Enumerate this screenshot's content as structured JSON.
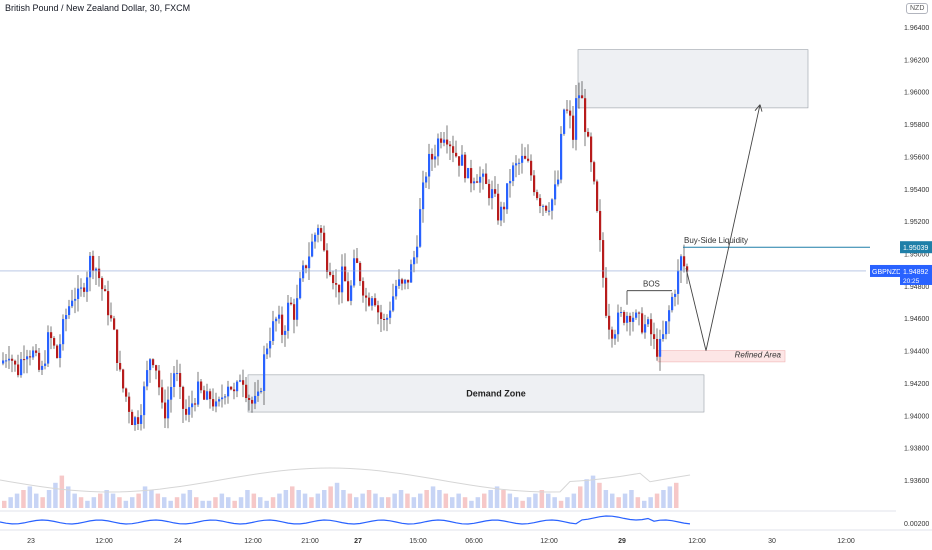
{
  "header": {
    "title": "British Pound / New Zealand Dollar, 30, FXCM",
    "currency": "NZD"
  },
  "chart_data": {
    "type": "candlestick",
    "title": "British Pound / New Zealand Dollar, 30, FXCM",
    "price_axis": {
      "ticks": [
        "1.96400",
        "1.96200",
        "1.96000",
        "1.95800",
        "1.95600",
        "1.95400",
        "1.95200",
        "1.95000",
        "1.94800",
        "1.94600",
        "1.94400",
        "1.94200",
        "1.94000",
        "1.93800",
        "1.93600"
      ],
      "ylim": [
        1.935,
        1.965
      ]
    },
    "oscillator_axis": {
      "ticks": [
        "0.00200"
      ]
    },
    "time_axis": {
      "ticks": [
        "23",
        "12:00",
        "24",
        "12:00",
        "21:00",
        "27",
        "15:00",
        "06:00",
        "12:00",
        "29",
        "12:00",
        "30",
        "12:00"
      ]
    },
    "price_path": [
      [
        0,
        1.9432
      ],
      [
        8,
        1.944
      ],
      [
        16,
        1.9426
      ],
      [
        24,
        1.9442
      ],
      [
        32,
        1.9438
      ],
      [
        40,
        1.9424
      ],
      [
        48,
        1.945
      ],
      [
        56,
        1.9436
      ],
      [
        64,
        1.946
      ],
      [
        72,
        1.9476
      ],
      [
        78,
        1.9472
      ],
      [
        84,
        1.9484
      ],
      [
        90,
        1.9498
      ],
      [
        96,
        1.949
      ],
      [
        102,
        1.9476
      ],
      [
        108,
        1.9464
      ],
      [
        114,
        1.9446
      ],
      [
        120,
        1.942
      ],
      [
        126,
        1.941
      ],
      [
        132,
        1.9396
      ],
      [
        138,
        1.94
      ],
      [
        144,
        1.9418
      ],
      [
        150,
        1.944
      ],
      [
        156,
        1.9428
      ],
      [
        162,
        1.9398
      ],
      [
        168,
        1.9412
      ],
      [
        174,
        1.943
      ],
      [
        180,
        1.9408
      ],
      [
        186,
        1.9398
      ],
      [
        192,
        1.941
      ],
      [
        198,
        1.9416
      ],
      [
        204,
        1.9408
      ],
      [
        210,
        1.9412
      ],
      [
        216,
        1.9402
      ],
      [
        222,
        1.9414
      ],
      [
        228,
        1.9422
      ],
      [
        234,
        1.941
      ],
      [
        240,
        1.9428
      ],
      [
        246,
        1.9414
      ],
      [
        252,
        1.9406
      ],
      [
        258,
        1.941
      ],
      [
        264,
        1.944
      ],
      [
        270,
        1.9452
      ],
      [
        276,
        1.946
      ],
      [
        282,
        1.945
      ],
      [
        288,
        1.947
      ],
      [
        294,
        1.9462
      ],
      [
        300,
        1.9484
      ],
      [
        306,
        1.9496
      ],
      [
        312,
        1.9508
      ],
      [
        318,
        1.952
      ],
      [
        324,
        1.9496
      ],
      [
        330,
        1.9492
      ],
      [
        336,
        1.9476
      ],
      [
        342,
        1.9488
      ],
      [
        348,
        1.947
      ],
      [
        354,
        1.9496
      ],
      [
        360,
        1.9484
      ],
      [
        366,
        1.947
      ],
      [
        372,
        1.9478
      ],
      [
        378,
        1.9462
      ],
      [
        384,
        1.9456
      ],
      [
        390,
        1.947
      ],
      [
        396,
        1.9482
      ],
      [
        402,
        1.9478
      ],
      [
        408,
        1.9486
      ],
      [
        414,
        1.95
      ],
      [
        420,
        1.953
      ],
      [
        426,
        1.9555
      ],
      [
        432,
        1.956
      ],
      [
        438,
        1.9572
      ],
      [
        444,
        1.9576
      ],
      [
        450,
        1.9568
      ],
      [
        456,
        1.956
      ],
      [
        462,
        1.9556
      ],
      [
        468,
        1.9545
      ],
      [
        474,
        1.955
      ],
      [
        480,
        1.9546
      ],
      [
        486,
        1.954
      ],
      [
        492,
        1.9536
      ],
      [
        498,
        1.9522
      ],
      [
        504,
        1.9532
      ],
      [
        510,
        1.955
      ],
      [
        516,
        1.9554
      ],
      [
        522,
        1.9558
      ],
      [
        528,
        1.9553
      ],
      [
        534,
        1.954
      ],
      [
        540,
        1.9532
      ],
      [
        546,
        1.953
      ],
      [
        552,
        1.9534
      ],
      [
        558,
        1.9548
      ],
      [
        562,
        1.959
      ],
      [
        568,
        1.9585
      ],
      [
        572,
        1.9572
      ],
      [
        576,
        1.96
      ],
      [
        580,
        1.9598
      ],
      [
        584,
        1.958
      ],
      [
        588,
        1.9562
      ],
      [
        594,
        1.9535
      ],
      [
        600,
        1.9498
      ],
      [
        606,
        1.946
      ],
      [
        612,
        1.9452
      ],
      [
        618,
        1.946
      ],
      [
        624,
        1.9462
      ],
      [
        630,
        1.9464
      ],
      [
        636,
        1.9458
      ],
      [
        642,
        1.9456
      ],
      [
        648,
        1.9454
      ],
      [
        654,
        1.9442
      ],
      [
        658,
        1.944
      ],
      [
        664,
        1.9452
      ],
      [
        670,
        1.947
      ],
      [
        676,
        1.9484
      ],
      [
        680,
        1.9496
      ],
      [
        686,
        1.9488
      ]
    ],
    "volume_levels": [
      2,
      3,
      4,
      5,
      6,
      4,
      3,
      5,
      7,
      9,
      6,
      4,
      3,
      2,
      3,
      4,
      5,
      4,
      3,
      2,
      3,
      4,
      6,
      5,
      4,
      3,
      2,
      3,
      4,
      5,
      3,
      2,
      2,
      3,
      4,
      3,
      2,
      3,
      5,
      4,
      3,
      2,
      3,
      4,
      5,
      6,
      5,
      4,
      3,
      4,
      5,
      6,
      7,
      5,
      4,
      3,
      4,
      5,
      4,
      3,
      3,
      4,
      5,
      4,
      3,
      4,
      5,
      6,
      5,
      4,
      3,
      4,
      3,
      2,
      3,
      4,
      5,
      6,
      5,
      4,
      3,
      2,
      3,
      4,
      5,
      4,
      3,
      2,
      3,
      4,
      6,
      8,
      9,
      7,
      5,
      4,
      3,
      4,
      5,
      3,
      2,
      3,
      4,
      5,
      6,
      7
    ],
    "annotations": {
      "supply_zone": {
        "price_top": 1.9626,
        "price_bottom": 1.959,
        "t_start": 578,
        "t_end": 808
      },
      "demand_zone": {
        "label": "Demand Zone",
        "price_top": 1.9425,
        "price_bottom": 1.9402,
        "t_start": 248,
        "t_end": 704
      },
      "refined_area": {
        "label": "Refined Area",
        "price_top": 1.944,
        "price_bottom": 1.9433,
        "t_start": 658,
        "t_end": 785
      },
      "bos": {
        "label": "BOS",
        "price": 1.9477
      },
      "buy_side_liquidity": {
        "label": "Buy-Side Liquidity",
        "price": 1.95039,
        "value": "1.95039"
      },
      "current_price": {
        "symbol": "GBPNZD",
        "value": "1.94892",
        "countdown": "20:25",
        "price": 1.94892
      },
      "projection": [
        [
          686,
          1.9491
        ],
        [
          706,
          1.944
        ],
        [
          760,
          1.9592
        ]
      ]
    },
    "colors": {
      "up": "#2962ff",
      "down": "#b71c1c",
      "liquidity_line": "#1f7fa8",
      "price_line": "#90a7d6",
      "zone_fill": "#eef0f3",
      "refined_fill": "#fde6e6",
      "oscillator": "#2962ff",
      "volume_up": "#c7d4f5",
      "volume_down": "#f6c8c8"
    },
    "grid": false
  }
}
